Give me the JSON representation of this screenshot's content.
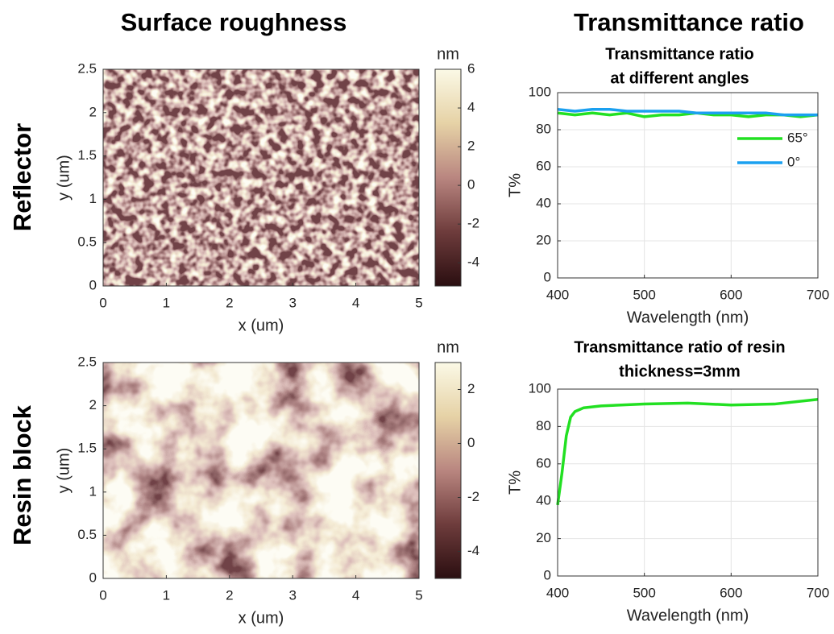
{
  "column_titles": [
    "Surface roughness",
    "Transmittance ratio"
  ],
  "row_labels": [
    "Reflector",
    "Resin block"
  ],
  "chart_data": [
    {
      "type": "image",
      "xlabel": "x (um)",
      "ylabel": "y (um)",
      "xlim": [
        0,
        5
      ],
      "xticks": [
        0,
        1,
        2,
        3,
        4,
        5
      ],
      "ylim": [
        0,
        2.5
      ],
      "yticks": [
        0,
        0.5,
        1,
        1.5,
        2,
        2.5
      ],
      "colorbar": {
        "label": "nm",
        "lim": [
          -5.2,
          6
        ],
        "ticks": [
          -4,
          -2,
          0,
          2,
          4,
          6
        ]
      },
      "colormap": [
        "#2a0e10",
        "#6e3c3c",
        "#b98680",
        "#e6d2a6",
        "#fbf9e6"
      ]
    },
    {
      "type": "image",
      "xlabel": "x (um)",
      "ylabel": "y (um)",
      "xlim": [
        0,
        5
      ],
      "xticks": [
        0,
        1,
        2,
        3,
        4,
        5
      ],
      "ylim": [
        0,
        2.5
      ],
      "yticks": [
        0,
        0.5,
        1,
        1.5,
        2,
        2.5
      ],
      "colorbar": {
        "label": "nm",
        "lim": [
          -5,
          3
        ],
        "ticks": [
          -4,
          -2,
          0,
          2
        ]
      },
      "colormap": [
        "#2a0e10",
        "#6e3c3c",
        "#b98680",
        "#e6d2a6",
        "#fbf9e6"
      ]
    },
    {
      "type": "line",
      "title": [
        "Transmittance ratio",
        "at different angles"
      ],
      "xlabel": "Wavelength (nm)",
      "ylabel": "T%",
      "x": [
        400,
        420,
        440,
        460,
        480,
        500,
        520,
        540,
        560,
        580,
        600,
        620,
        640,
        660,
        680,
        700
      ],
      "series": [
        {
          "name": "65°",
          "color": "#22e022",
          "values": [
            89,
            88,
            89,
            88,
            89,
            87,
            88,
            88,
            89,
            88,
            88,
            87,
            88,
            88,
            87,
            88
          ]
        },
        {
          "name": "0°",
          "color": "#1aa0f0",
          "values": [
            91,
            90,
            91,
            91,
            90,
            90,
            90,
            90,
            89,
            89,
            89,
            89,
            89,
            88,
            88,
            88
          ]
        }
      ],
      "xlim": [
        400,
        700
      ],
      "xticks": [
        400,
        500,
        600,
        700
      ],
      "ylim": [
        0,
        100
      ],
      "yticks": [
        0,
        20,
        40,
        60,
        80,
        100
      ],
      "grid": true,
      "legend": "upper right"
    },
    {
      "type": "line",
      "title": [
        "Transmittance ratio of resin",
        "thickness=3mm"
      ],
      "xlabel": "Wavelength (nm)",
      "ylabel": "T%",
      "x": [
        400,
        405,
        410,
        415,
        420,
        430,
        450,
        500,
        550,
        600,
        650,
        700
      ],
      "values": [
        38,
        55,
        75,
        85,
        88,
        90,
        91,
        92,
        92.5,
        91.5,
        92,
        94.5
      ],
      "color": "#22e022",
      "xlim": [
        400,
        700
      ],
      "xticks": [
        400,
        500,
        600,
        700
      ],
      "ylim": [
        0,
        100
      ],
      "yticks": [
        0,
        20,
        40,
        60,
        80,
        100
      ],
      "grid": true
    }
  ]
}
